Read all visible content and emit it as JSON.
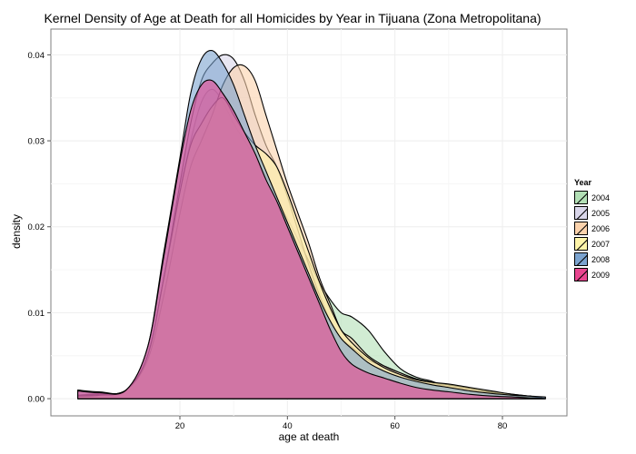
{
  "chart_data": {
    "type": "area",
    "title": "Kernel Density of Age at Death for all Homicides by Year in Tijuana (Zona Metropolitana)",
    "xlabel": "age at death",
    "ylabel": "density",
    "xlim": [
      -4,
      92
    ],
    "ylim": [
      -0.002,
      0.043
    ],
    "x_ticks": [
      20,
      40,
      60,
      80
    ],
    "y_ticks": [
      0.0,
      0.01,
      0.02,
      0.03,
      0.04
    ],
    "y_tick_labels": [
      "0.00",
      "0.01",
      "0.02",
      "0.03",
      "0.04"
    ],
    "grid": true,
    "legend_title": "Year",
    "legend_position": "right",
    "x": [
      1,
      5,
      10,
      14,
      17,
      20,
      22,
      24,
      26,
      28,
      30,
      32,
      34,
      36,
      38,
      40,
      42,
      44,
      46,
      48,
      50,
      52,
      55,
      58,
      61,
      64,
      67,
      70,
      74,
      78,
      82,
      85,
      88
    ],
    "series": [
      {
        "name": "2004",
        "color": "#b2dfb5",
        "values": [
          0.0002,
          0.0004,
          0.001,
          0.005,
          0.014,
          0.024,
          0.03,
          0.0345,
          0.036,
          0.0345,
          0.032,
          0.03,
          0.028,
          0.026,
          0.0235,
          0.021,
          0.0185,
          0.016,
          0.0135,
          0.0115,
          0.01,
          0.0095,
          0.008,
          0.0055,
          0.0035,
          0.0025,
          0.002,
          0.0013,
          0.0009,
          0.0006,
          0.0004,
          0.0003,
          0.0
        ]
      },
      {
        "name": "2005",
        "color": "#d9d6ea",
        "values": [
          0.0004,
          0.0006,
          0.001,
          0.005,
          0.014,
          0.025,
          0.032,
          0.037,
          0.039,
          0.04,
          0.0395,
          0.037,
          0.033,
          0.0295,
          0.027,
          0.0235,
          0.0195,
          0.0155,
          0.012,
          0.009,
          0.007,
          0.006,
          0.0045,
          0.0038,
          0.003,
          0.0022,
          0.0018,
          0.0014,
          0.0011,
          0.0008,
          0.0005,
          0.0003,
          0.0
        ]
      },
      {
        "name": "2006",
        "color": "#fbd2ac",
        "values": [
          0.0004,
          0.0005,
          0.001,
          0.0045,
          0.012,
          0.0215,
          0.027,
          0.03,
          0.033,
          0.0365,
          0.0385,
          0.0387,
          0.037,
          0.033,
          0.029,
          0.025,
          0.0215,
          0.018,
          0.014,
          0.011,
          0.008,
          0.007,
          0.005,
          0.0038,
          0.003,
          0.0023,
          0.0019,
          0.0016,
          0.0012,
          0.0007,
          0.0004,
          0.0003,
          0.0
        ]
      },
      {
        "name": "2007",
        "color": "#fff4a8",
        "values": [
          0.0003,
          0.0004,
          0.001,
          0.005,
          0.014,
          0.024,
          0.0295,
          0.032,
          0.034,
          0.035,
          0.033,
          0.031,
          0.0295,
          0.0285,
          0.027,
          0.024,
          0.0205,
          0.017,
          0.0135,
          0.0105,
          0.008,
          0.0065,
          0.0048,
          0.0036,
          0.0028,
          0.0022,
          0.0019,
          0.0017,
          0.0013,
          0.0009,
          0.0005,
          0.0003,
          0.0
        ]
      },
      {
        "name": "2008",
        "color": "#7ba3cf",
        "values": [
          0.001,
          0.0008,
          0.001,
          0.006,
          0.017,
          0.028,
          0.0355,
          0.0395,
          0.0405,
          0.039,
          0.0365,
          0.033,
          0.0295,
          0.0265,
          0.0235,
          0.0205,
          0.0175,
          0.0145,
          0.0115,
          0.009,
          0.007,
          0.0058,
          0.0042,
          0.0032,
          0.0025,
          0.002,
          0.0016,
          0.0013,
          0.0009,
          0.0006,
          0.0004,
          0.0003,
          0.0002
        ]
      },
      {
        "name": "2009",
        "color": "#e8458f",
        "values": [
          0.0009,
          0.0007,
          0.001,
          0.006,
          0.0165,
          0.0275,
          0.0335,
          0.0365,
          0.037,
          0.0355,
          0.0335,
          0.031,
          0.0285,
          0.0255,
          0.023,
          0.02,
          0.017,
          0.014,
          0.011,
          0.008,
          0.0055,
          0.004,
          0.003,
          0.0024,
          0.0018,
          0.0013,
          0.001,
          0.0008,
          0.0005,
          0.0003,
          0.0002,
          0.0001,
          0.0
        ]
      }
    ]
  }
}
